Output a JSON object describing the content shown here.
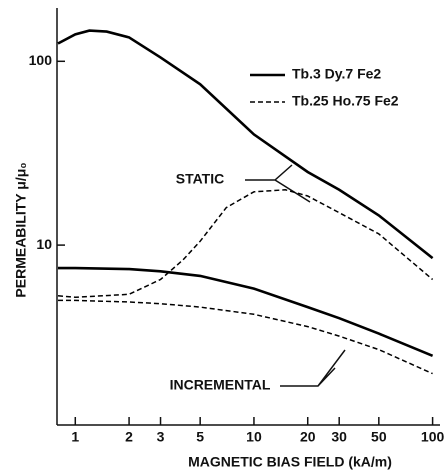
{
  "chart_data": {
    "type": "line",
    "y_label": "PERMEABILITY μ/μ₀",
    "x_label": "MAGNETIC BIAS FIELD (kA/m)",
    "x_scale": "log",
    "y_scale": "log",
    "xlim": [
      0.79,
      110
    ],
    "ylim": [
      1.05,
      195
    ],
    "xticks": [
      1,
      2,
      3,
      5,
      10,
      20,
      30,
      50,
      100
    ],
    "yticks": [
      10,
      100
    ],
    "annotations": [
      "STATIC",
      "INCREMENTAL"
    ],
    "series": [
      {
        "name": "Tb.3 Dy.7 Fe2",
        "color": "#000000",
        "line_style": "solid",
        "x": [
          0.8,
          1,
          1.2,
          1.5,
          2,
          3,
          5,
          10,
          20,
          30,
          50,
          100
        ],
        "values": [
          125,
          140,
          147,
          145,
          135,
          105,
          75,
          40,
          25,
          20,
          14.5,
          8.5
        ]
      },
      {
        "name": "Tb.25 Ho.75 Fe2",
        "color": "#000000",
        "line_style": "dashed",
        "x": [
          0.8,
          1,
          2,
          3,
          4,
          5,
          7,
          10,
          15,
          20,
          30,
          50,
          100
        ],
        "values": [
          5.3,
          5.2,
          5.4,
          6.5,
          8.3,
          10.5,
          16,
          19.5,
          20,
          18.5,
          15,
          11.5,
          6.5
        ]
      },
      {
        "name": "Tb.3 Dy.7 Fe2",
        "color": "#000000",
        "line_style": "solid",
        "x": [
          0.8,
          1,
          2,
          3,
          5,
          10,
          20,
          30,
          50,
          100
        ],
        "values": [
          7.5,
          7.5,
          7.4,
          7.2,
          6.8,
          5.8,
          4.6,
          4.0,
          3.3,
          2.5
        ]
      },
      {
        "name": "Tb.25 Ho.75 Fe2",
        "color": "#000000",
        "line_style": "dashed",
        "x": [
          0.8,
          1,
          2,
          3,
          5,
          10,
          20,
          30,
          50,
          100
        ],
        "values": [
          5.0,
          5.0,
          4.9,
          4.8,
          4.6,
          4.2,
          3.6,
          3.2,
          2.7,
          2.0
        ]
      }
    ]
  }
}
